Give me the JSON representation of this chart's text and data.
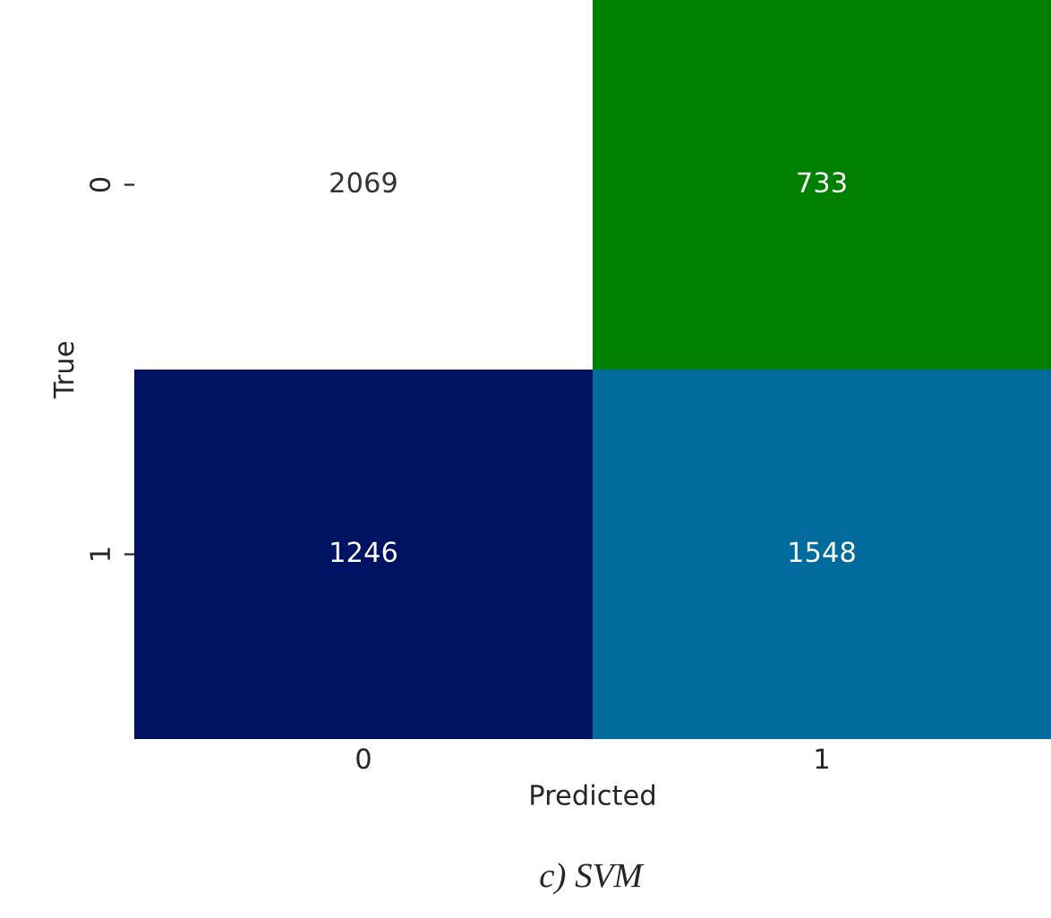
{
  "chart_data": {
    "type": "heatmap",
    "categories": [
      "0",
      "1"
    ],
    "y_categories": [
      "0",
      "1"
    ],
    "cells": [
      [
        2069,
        733
      ],
      [
        1246,
        1548
      ]
    ],
    "data_labels": true,
    "xlabel": "Predicted",
    "ylabel": "True",
    "annotations": [
      "c) SVM"
    ]
  }
}
